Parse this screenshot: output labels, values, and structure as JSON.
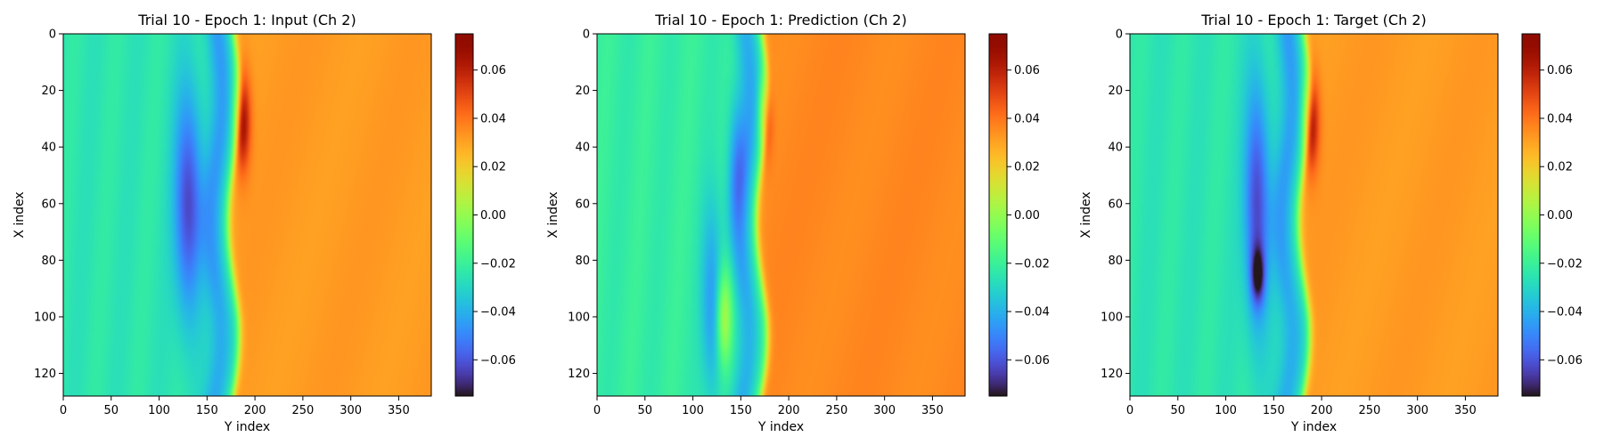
{
  "chart_data": [
    {
      "type": "heatmap",
      "title": "Trial 10 - Epoch 1: Input (Ch 2)",
      "xlabel": "Y index",
      "ylabel": "X index",
      "x_range": [
        0,
        384
      ],
      "y_range": [
        0,
        128
      ],
      "y_inverted": true,
      "xticks": [
        0,
        50,
        100,
        150,
        200,
        250,
        300,
        350
      ],
      "yticks": [
        0,
        20,
        40,
        60,
        80,
        100,
        120
      ],
      "colormap": "turbo",
      "colorbar": {
        "range": [
          -0.075,
          0.075
        ],
        "ticks": [
          0.06,
          0.04,
          0.02,
          0.0,
          -0.02,
          -0.04,
          -0.06
        ],
        "tick_labels": [
          "0.06",
          "0.04",
          "0.02",
          "0.00",
          "−0.02",
          "−0.04",
          "−0.06"
        ]
      },
      "field": {
        "left_value": -0.025,
        "right_value": 0.032,
        "front_base_y": 178,
        "features": [
          {
            "kind": "trough",
            "cx": 130,
            "cy": 60,
            "sx": 10,
            "sy": 28,
            "amp": -0.04
          },
          {
            "kind": "peak",
            "cx": 186,
            "cy": 30,
            "sx": 6,
            "sy": 12,
            "amp": 0.04
          }
        ]
      }
    },
    {
      "type": "heatmap",
      "title": "Trial 10 - Epoch 1: Prediction (Ch 2)",
      "xlabel": "Y index",
      "ylabel": "X index",
      "x_range": [
        0,
        384
      ],
      "y_range": [
        0,
        128
      ],
      "y_inverted": true,
      "xticks": [
        0,
        50,
        100,
        150,
        200,
        250,
        300,
        350
      ],
      "yticks": [
        0,
        20,
        40,
        60,
        80,
        100,
        120
      ],
      "colormap": "turbo",
      "colorbar": {
        "range": [
          -0.075,
          0.075
        ],
        "ticks": [
          0.06,
          0.04,
          0.02,
          0.0,
          -0.02,
          -0.04,
          -0.06
        ],
        "tick_labels": [
          "0.06",
          "0.04",
          "0.02",
          "0.00",
          "−0.02",
          "−0.04",
          "−0.06"
        ]
      },
      "field": {
        "left_value": -0.022,
        "right_value": 0.036,
        "front_base_y": 172,
        "features": [
          {
            "kind": "trough",
            "cx": 120,
            "cy": 95,
            "sx": 8,
            "sy": 25,
            "amp": -0.025
          },
          {
            "kind": "trough",
            "cx": 145,
            "cy": 45,
            "sx": 7,
            "sy": 18,
            "amp": -0.02
          },
          {
            "kind": "peak",
            "cx": 132,
            "cy": 100,
            "sx": 6,
            "sy": 12,
            "amp": 0.03
          },
          {
            "kind": "peak",
            "cx": 175,
            "cy": 28,
            "sx": 5,
            "sy": 10,
            "amp": 0.03
          }
        ]
      }
    },
    {
      "type": "heatmap",
      "title": "Trial 10 - Epoch 1: Target (Ch 2)",
      "xlabel": "Y index",
      "ylabel": "X index",
      "x_range": [
        0,
        384
      ],
      "y_range": [
        0,
        128
      ],
      "y_inverted": true,
      "xticks": [
        0,
        50,
        100,
        150,
        200,
        250,
        300,
        350
      ],
      "yticks": [
        0,
        20,
        40,
        60,
        80,
        100,
        120
      ],
      "colormap": "turbo",
      "colorbar": {
        "range": [
          -0.075,
          0.075
        ],
        "ticks": [
          0.06,
          0.04,
          0.02,
          0.0,
          -0.02,
          -0.04,
          -0.06
        ],
        "tick_labels": [
          "0.06",
          "0.04",
          "0.02",
          "0.00",
          "−0.02",
          "−0.04",
          "−0.06"
        ]
      },
      "field": {
        "left_value": -0.025,
        "right_value": 0.032,
        "front_base_y": 182,
        "features": [
          {
            "kind": "trough",
            "cx": 132,
            "cy": 60,
            "sx": 9,
            "sy": 30,
            "amp": -0.04
          },
          {
            "kind": "trough",
            "cx": 133,
            "cy": 85,
            "sx": 5,
            "sy": 7,
            "amp": -0.035
          },
          {
            "kind": "peak",
            "cx": 188,
            "cy": 30,
            "sx": 6,
            "sy": 12,
            "amp": 0.04
          }
        ]
      }
    }
  ]
}
